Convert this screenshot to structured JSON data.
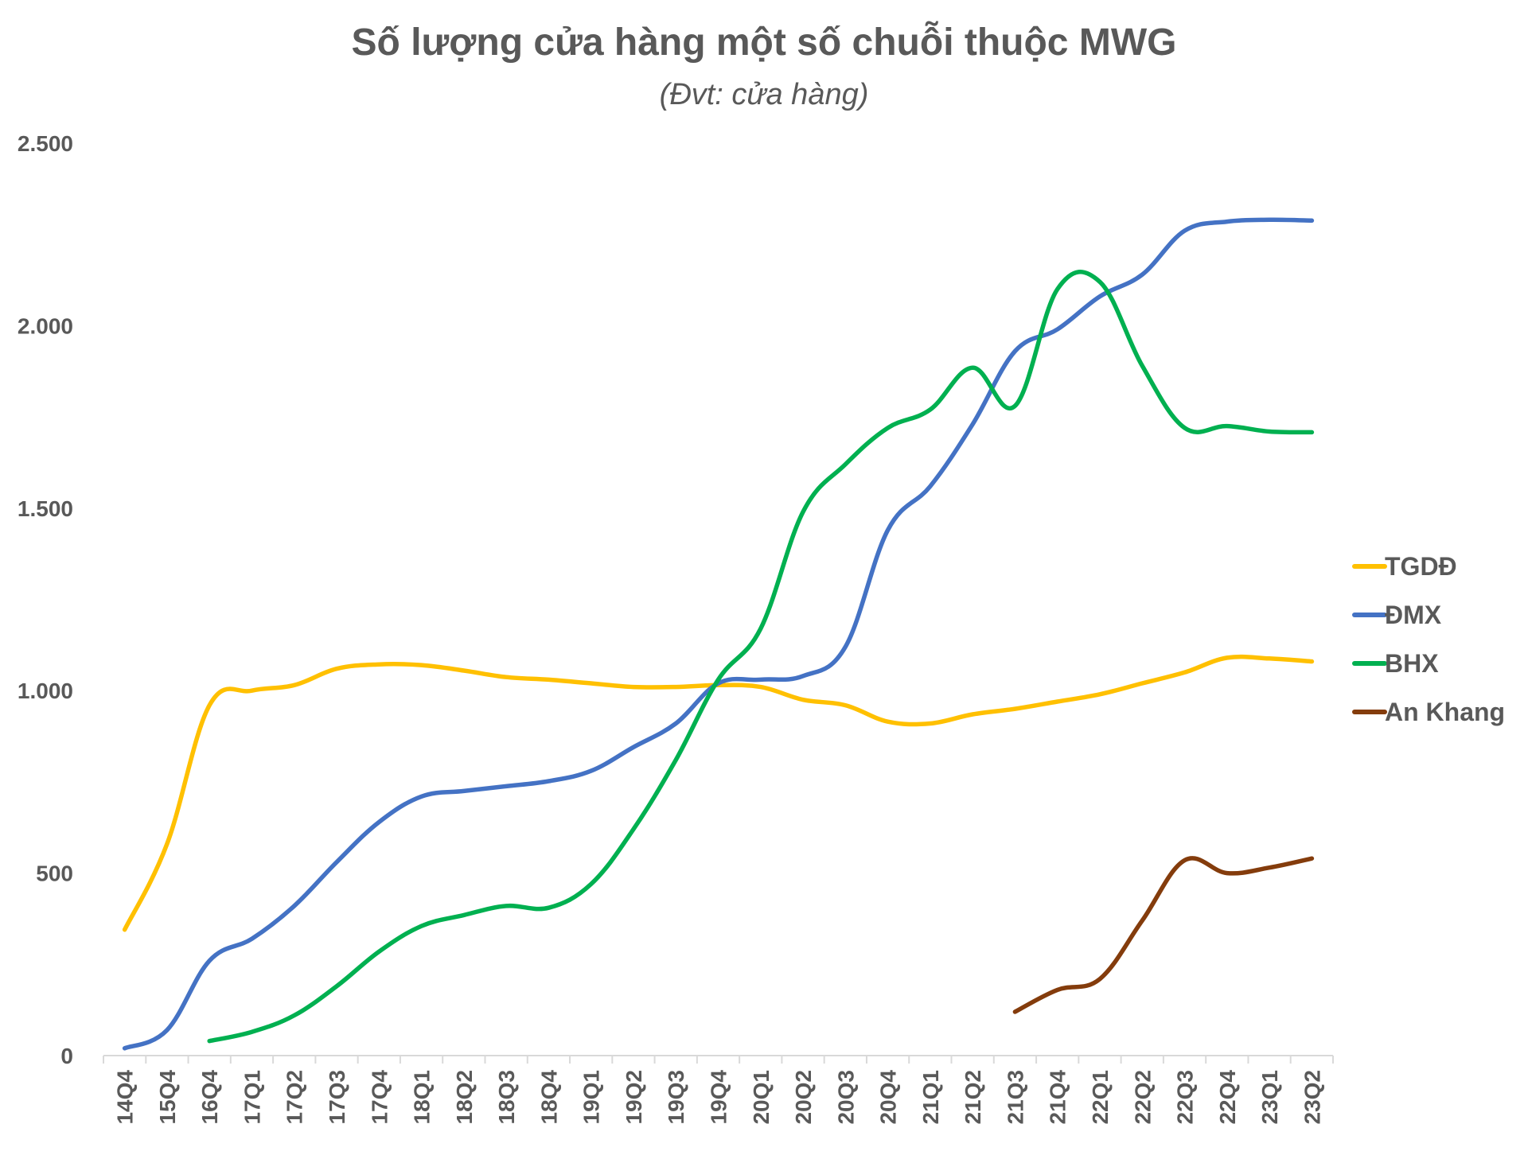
{
  "chart_data": {
    "type": "line",
    "title": "Số lượng cửa hàng một số chuỗi thuộc MWG",
    "subtitle": "(Đvt: cửa hàng)",
    "categories": [
      "14Q4",
      "15Q4",
      "16Q4",
      "17Q1",
      "17Q2",
      "17Q3",
      "17Q4",
      "18Q1",
      "18Q2",
      "18Q3",
      "18Q4",
      "19Q1",
      "19Q2",
      "19Q3",
      "19Q4",
      "20Q1",
      "20Q2",
      "20Q3",
      "20Q4",
      "21Q1",
      "21Q2",
      "21Q3",
      "21Q4",
      "22Q1",
      "22Q2",
      "22Q3",
      "22Q4",
      "23Q1",
      "23Q2"
    ],
    "ylim": [
      0,
      2500
    ],
    "yticks": [
      0,
      500,
      1000,
      1500,
      2000,
      2500
    ],
    "ytick_labels": [
      "0",
      "500",
      "1.000",
      "1.500",
      "2.000",
      "2.500"
    ],
    "grid": false,
    "legend_position": "right",
    "series": [
      {
        "name": "TGDĐ",
        "color": "#FFC000",
        "values": [
          345,
          580,
          960,
          1000,
          1015,
          1060,
          1072,
          1070,
          1055,
          1037,
          1030,
          1020,
          1010,
          1010,
          1015,
          1010,
          975,
          960,
          915,
          910,
          935,
          950,
          970,
          990,
          1020,
          1050,
          1090,
          1088,
          1080
        ]
      },
      {
        "name": "ĐMX",
        "color": "#4472C4",
        "values": [
          20,
          70,
          260,
          320,
          410,
          530,
          640,
          710,
          725,
          738,
          752,
          780,
          845,
          910,
          1020,
          1030,
          1040,
          1120,
          1440,
          1560,
          1730,
          1930,
          1990,
          2080,
          2140,
          2260,
          2285,
          2290,
          2288
        ]
      },
      {
        "name": "BHX",
        "color": "#00B050",
        "values": [
          null,
          null,
          40,
          65,
          110,
          190,
          285,
          355,
          385,
          410,
          405,
          470,
          620,
          810,
          1030,
          1170,
          1490,
          1620,
          1720,
          1770,
          1885,
          1780,
          2100,
          2120,
          1890,
          1720,
          1725,
          1710,
          1708
        ]
      },
      {
        "name": "An Khang",
        "color": "#843C0C",
        "values": [
          null,
          null,
          null,
          null,
          null,
          null,
          null,
          null,
          null,
          null,
          null,
          null,
          null,
          null,
          null,
          null,
          null,
          null,
          null,
          null,
          null,
          120,
          180,
          210,
          370,
          535,
          500,
          515,
          540
        ]
      }
    ]
  }
}
